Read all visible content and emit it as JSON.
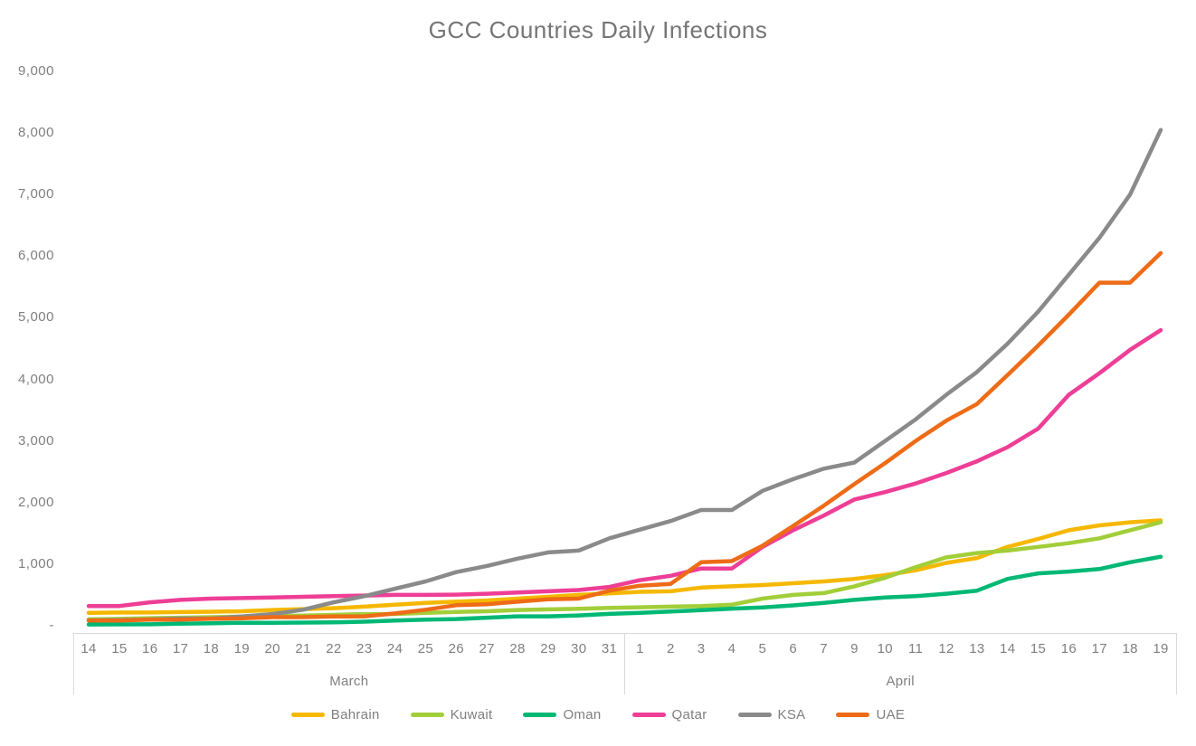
{
  "title": "GCC Countries Daily Infections",
  "colors": {
    "title_text": "#757575",
    "label_text": "#7F7F7F",
    "axis_line": "#D9D9D9",
    "background": "#FFFFFF"
  },
  "chart_data": {
    "type": "line",
    "title": "GCC Countries Daily Infections",
    "grid": false,
    "legend_position": "bottom",
    "ylim": [
      0,
      9000
    ],
    "y_ticks": [
      {
        "label": "9,000",
        "value": 9000
      },
      {
        "label": "8,000",
        "value": 8000
      },
      {
        "label": "7,000",
        "value": 7000
      },
      {
        "label": "6,000",
        "value": 6000
      },
      {
        "label": "5,000",
        "value": 5000
      },
      {
        "label": "4,000",
        "value": 4000
      },
      {
        "label": "3,000",
        "value": 3000
      },
      {
        "label": "2,000",
        "value": 2000
      },
      {
        "label": "1,000",
        "value": 1000
      },
      {
        "label": "-",
        "value": 0
      }
    ],
    "x_groups": [
      {
        "month": "March",
        "days": [
          "14",
          "15",
          "16",
          "17",
          "18",
          "19",
          "20",
          "21",
          "22",
          "23",
          "24",
          "25",
          "26",
          "27",
          "28",
          "29",
          "30",
          "31"
        ]
      },
      {
        "month": "April",
        "days": [
          "1",
          "2",
          "3",
          "4",
          "5",
          "6",
          "7",
          "9",
          "10",
          "11",
          "12",
          "13",
          "14",
          "15",
          "16",
          "17",
          "18",
          "19"
        ]
      }
    ],
    "series": [
      {
        "name": "Bahrain",
        "color": "#F5B800",
        "values": [
          210,
          214,
          214,
          221,
          228,
          235,
          256,
          270,
          285,
          310,
          340,
          370,
          390,
          410,
          440,
          470,
          500,
          525,
          550,
          560,
          620,
          640,
          660,
          690,
          720,
          760,
          820,
          900,
          1020,
          1100,
          1280,
          1410,
          1550,
          1630,
          1680,
          1710
        ]
      },
      {
        "name": "Kuwait",
        "color": "#A2CE39",
        "values": [
          104,
          112,
          123,
          130,
          140,
          148,
          159,
          166,
          176,
          189,
          191,
          208,
          225,
          235,
          255,
          266,
          275,
          289,
          300,
          310,
          320,
          342,
          440,
          500,
          530,
          640,
          780,
          950,
          1110,
          1180,
          1220,
          1280,
          1340,
          1420,
          1550,
          1680
        ]
      },
      {
        "name": "Oman",
        "color": "#00B874",
        "values": [
          20,
          22,
          24,
          33,
          39,
          48,
          48,
          52,
          55,
          66,
          84,
          99,
          109,
          131,
          152,
          152,
          167,
          192,
          210,
          231,
          252,
          277,
          298,
          331,
          371,
          420,
          460,
          480,
          520,
          570,
          760,
          850,
          880,
          920,
          1030,
          1120
        ]
      },
      {
        "name": "Qatar",
        "color": "#EE3E96",
        "values": [
          320,
          320,
          380,
          420,
          440,
          450,
          460,
          470,
          480,
          490,
          500,
          500,
          505,
          520,
          540,
          560,
          580,
          630,
          740,
          810,
          930,
          930,
          1280,
          1550,
          1790,
          2050,
          2170,
          2310,
          2480,
          2670,
          2900,
          3200,
          3750,
          4100,
          4480,
          4800
        ]
      },
      {
        "name": "KSA",
        "color": "#8A8A8A",
        "values": [
          86,
          92,
          103,
          118,
          118,
          150,
          190,
          260,
          380,
          480,
          600,
          720,
          870,
          970,
          1090,
          1190,
          1220,
          1420,
          1560,
          1700,
          1880,
          1880,
          2190,
          2380,
          2550,
          2650,
          3000,
          3350,
          3750,
          4120,
          4580,
          5100,
          5700,
          6300,
          7000,
          8050
        ]
      },
      {
        "name": "UAE",
        "color": "#EE6B17",
        "values": [
          85,
          85,
          98,
          98,
          113,
          120,
          140,
          140,
          150,
          153,
          200,
          260,
          333,
          350,
          390,
          430,
          440,
          570,
          650,
          680,
          1030,
          1050,
          1300,
          1620,
          1950,
          2300,
          2640,
          3000,
          3330,
          3600,
          4070,
          4550,
          5050,
          5570,
          5570,
          6050
        ]
      }
    ]
  }
}
